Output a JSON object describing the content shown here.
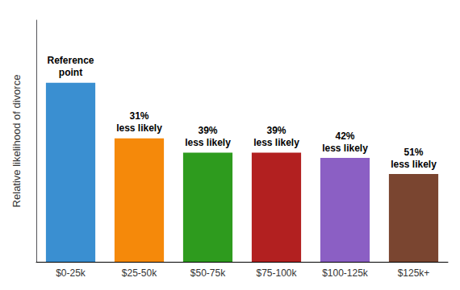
{
  "chart_data": {
    "type": "bar",
    "categories": [
      "$0-25k",
      "$25-50k",
      "$50-75k",
      "$75-100k",
      "$100-125k",
      "$125k+"
    ],
    "values": [
      1.0,
      0.69,
      0.61,
      0.61,
      0.58,
      0.49
    ],
    "value_labels": [
      "Reference\npoint",
      "31%\nless likely",
      "39%\nless likely",
      "39%\nless likely",
      "42%\nless likely",
      "51%\nless likely"
    ],
    "data_labels": true,
    "colors": [
      "#3a8fd1",
      "#f5890a",
      "#2e9b1e",
      "#b22020",
      "#8b5fc4",
      "#7a4530"
    ],
    "ylabel": "Relative likelihood of divorce",
    "ylim": [
      0,
      1.35
    ],
    "tick_labels": "x",
    "grid": false
  }
}
